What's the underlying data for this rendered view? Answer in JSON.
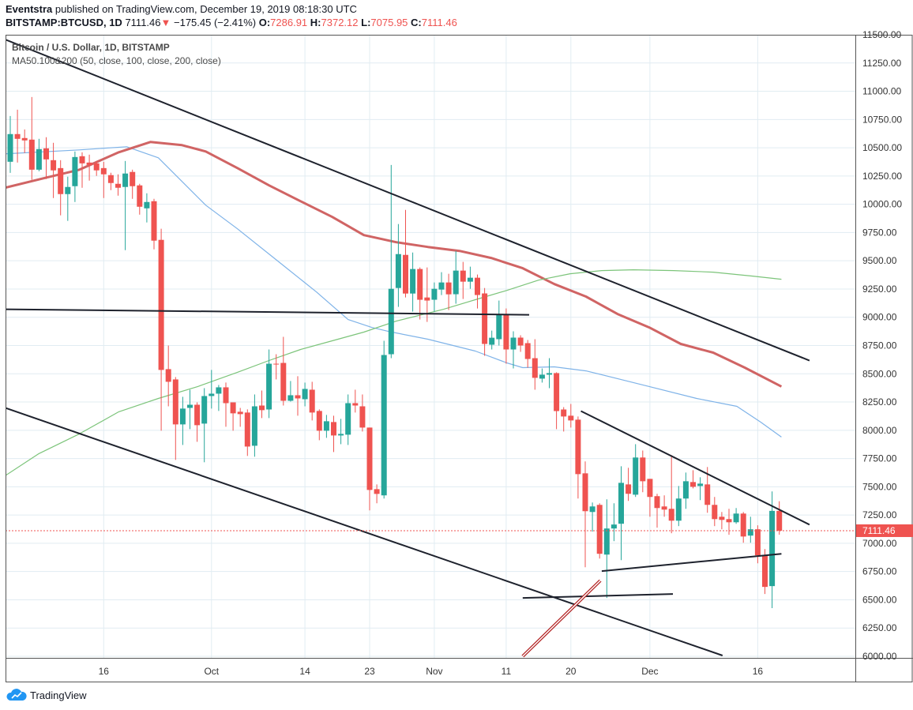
{
  "header": {
    "author": "Eventstra",
    "published_text": "published on TradingView.com, December 19, 2019 08:18:30 UTC",
    "symbol": "BITSTAMP:BTCUSD, 1D",
    "last": "7111.46",
    "change": "−175.45 (−2.41%)",
    "o_label": "O:",
    "o": "7286.91",
    "h_label": "H:",
    "h": "7372.12",
    "l_label": "L:",
    "l": "7075.95",
    "c_label": "C:",
    "c": "7111.46"
  },
  "legend": {
    "title": "Bitcoin / U.S. Dollar, 1D, BITSTAMP",
    "indicator": "MA50.100&200 (50, close, 100, close, 200, close)"
  },
  "footer": {
    "brand": "TradingView"
  },
  "colors": {
    "up": "#26a69a",
    "down": "#ef5350",
    "ma50": "#7fb3e8",
    "ma100": "#d06464",
    "ma200": "#7cc47a",
    "trend": "#1e222d",
    "grid": "#e1ecf2",
    "arrow": "#b22222"
  },
  "chart_data": {
    "type": "candlestick",
    "title": "Bitcoin / U.S. Dollar, 1D, BITSTAMP",
    "ylim": [
      6000,
      11500
    ],
    "y_ticks": [
      6000,
      6250,
      6500,
      6750,
      7000,
      7250,
      7500,
      7750,
      8000,
      8250,
      8500,
      8750,
      9000,
      9250,
      9500,
      9750,
      10000,
      10250,
      10500,
      10750,
      11000,
      11250,
      11500
    ],
    "x_ticks": [
      {
        "i": 13,
        "label": "16"
      },
      {
        "i": 28,
        "label": "Oct"
      },
      {
        "i": 41,
        "label": "14"
      },
      {
        "i": 50,
        "label": "23"
      },
      {
        "i": 59,
        "label": "Nov"
      },
      {
        "i": 69,
        "label": "11"
      },
      {
        "i": 78,
        "label": "20"
      },
      {
        "i": 89,
        "label": "Dec"
      },
      {
        "i": 104,
        "label": "16"
      }
    ],
    "last_price": 7111.46,
    "last_price_label": "7111.46",
    "candles_ohlc": [
      [
        10376,
        10781,
        10278,
        10621
      ],
      [
        10621,
        10837,
        10369,
        10579
      ],
      [
        10586,
        10662,
        10453,
        10565
      ],
      [
        10572,
        10949,
        10216,
        10306
      ],
      [
        10306,
        10579,
        10292,
        10488
      ],
      [
        10495,
        10593,
        10223,
        10397
      ],
      [
        10390,
        10544,
        10055,
        10300
      ],
      [
        10320,
        10390,
        9902,
        10090
      ],
      [
        10090,
        10244,
        9853,
        10153
      ],
      [
        10160,
        10467,
        10020,
        10418
      ],
      [
        10425,
        10460,
        10146,
        10362
      ],
      [
        10369,
        10439,
        10209,
        10348
      ],
      [
        10362,
        10383,
        10251,
        10300
      ],
      [
        10320,
        10376,
        10055,
        10265
      ],
      [
        10258,
        10279,
        10125,
        10188
      ],
      [
        10181,
        10265,
        10076,
        10146
      ],
      [
        10153,
        10383,
        9594,
        10272
      ],
      [
        10286,
        10306,
        10048,
        10160
      ],
      [
        10167,
        10181,
        9908,
        9978
      ],
      [
        9964,
        10097,
        9839,
        10020
      ],
      [
        10027,
        10048,
        9601,
        9678
      ],
      [
        9685,
        9783,
        7996,
        8534
      ],
      [
        8541,
        8750,
        8212,
        8429
      ],
      [
        8450,
        8471,
        7738,
        8052
      ],
      [
        8052,
        8296,
        7870,
        8192
      ],
      [
        8198,
        8359,
        8010,
        8226
      ],
      [
        8226,
        8247,
        7898,
        8045
      ],
      [
        8059,
        8373,
        7717,
        8303
      ],
      [
        8303,
        8534,
        8192,
        8324
      ],
      [
        8324,
        8401,
        8171,
        8380
      ],
      [
        8380,
        8422,
        8031,
        8240
      ],
      [
        8247,
        8247,
        7996,
        8150
      ],
      [
        8164,
        8198,
        8031,
        8143
      ],
      [
        8157,
        8185,
        7773,
        7856
      ],
      [
        7863,
        8317,
        7766,
        8212
      ],
      [
        8219,
        8352,
        8108,
        8178
      ],
      [
        8184,
        8715,
        8108,
        8589
      ],
      [
        8589,
        8673,
        8450,
        8582
      ],
      [
        8596,
        8827,
        8219,
        8261
      ],
      [
        8261,
        8436,
        8254,
        8310
      ],
      [
        8310,
        8478,
        8129,
        8282
      ],
      [
        8275,
        8422,
        8212,
        8366
      ],
      [
        8359,
        8429,
        8087,
        8157
      ],
      [
        8171,
        8185,
        7912,
        7996
      ],
      [
        7996,
        8136,
        7933,
        8080
      ],
      [
        8073,
        8129,
        7807,
        7954
      ],
      [
        7954,
        8101,
        7877,
        7968
      ],
      [
        7961,
        8317,
        7870,
        8240
      ],
      [
        8240,
        8359,
        8157,
        8219
      ],
      [
        8212,
        8317,
        7989,
        8024
      ],
      [
        8024,
        8024,
        7291,
        7472
      ],
      [
        7479,
        7521,
        7354,
        7437
      ],
      [
        7424,
        8792,
        7396,
        8666
      ],
      [
        8673,
        10348,
        8638,
        9252
      ],
      [
        9259,
        9825,
        9092,
        9559
      ],
      [
        9552,
        9950,
        9175,
        9210
      ],
      [
        9210,
        9573,
        9050,
        9427
      ],
      [
        9427,
        9441,
        8980,
        9155
      ],
      [
        9175,
        9441,
        8959,
        9148
      ],
      [
        9155,
        9308,
        9050,
        9252
      ],
      [
        9245,
        9399,
        9196,
        9308
      ],
      [
        9308,
        9385,
        9064,
        9203
      ],
      [
        9204,
        9587,
        9120,
        9413
      ],
      [
        9413,
        9490,
        9162,
        9315
      ],
      [
        9315,
        9448,
        9252,
        9350
      ],
      [
        9350,
        9378,
        9078,
        9197
      ],
      [
        9211,
        9259,
        8659,
        8764
      ],
      [
        8757,
        8882,
        8715,
        8819
      ],
      [
        8806,
        9148,
        8750,
        9022
      ],
      [
        9029,
        9078,
        8589,
        8715
      ],
      [
        8715,
        8876,
        8547,
        8820
      ],
      [
        8820,
        8841,
        8694,
        8750
      ],
      [
        8771,
        8799,
        8554,
        8631
      ],
      [
        8638,
        8806,
        8359,
        8464
      ],
      [
        8457,
        8547,
        8422,
        8492
      ],
      [
        8492,
        8638,
        8373,
        8506
      ],
      [
        8506,
        8513,
        8010,
        8170
      ],
      [
        8184,
        8205,
        7989,
        8122
      ],
      [
        8129,
        8233,
        8024,
        8087
      ],
      [
        8094,
        8122,
        7396,
        7612
      ],
      [
        7619,
        7724,
        6788,
        7284
      ],
      [
        7277,
        7361,
        7103,
        7326
      ],
      [
        7340,
        7354,
        6865,
        6907
      ],
      [
        6900,
        7389,
        6516,
        7131
      ],
      [
        7131,
        7354,
        7019,
        7166
      ],
      [
        7173,
        7682,
        6851,
        7535
      ],
      [
        7521,
        7668,
        7375,
        7438
      ],
      [
        7430,
        7877,
        7410,
        7759
      ],
      [
        7759,
        7821,
        7452,
        7549
      ],
      [
        7570,
        7570,
        7235,
        7410
      ],
      [
        7417,
        7438,
        7138,
        7312
      ],
      [
        7326,
        7424,
        7235,
        7298
      ],
      [
        7305,
        7780,
        7089,
        7200
      ],
      [
        7200,
        7507,
        7152,
        7396
      ],
      [
        7396,
        7626,
        7305,
        7549
      ],
      [
        7542,
        7647,
        7486,
        7500
      ],
      [
        7507,
        7584,
        7382,
        7528
      ],
      [
        7521,
        7675,
        7270,
        7340
      ],
      [
        7340,
        7410,
        7152,
        7214
      ],
      [
        7235,
        7277,
        7124,
        7207
      ],
      [
        7214,
        7305,
        7075,
        7186
      ],
      [
        7186,
        7312,
        7172,
        7263
      ],
      [
        7263,
        7277,
        7005,
        7060
      ],
      [
        7068,
        7235,
        7005,
        7124
      ],
      [
        7124,
        7159,
        6823,
        6893
      ],
      [
        6893,
        6949,
        6551,
        6614
      ],
      [
        6621,
        7459,
        6426,
        7286.91
      ],
      [
        7286.91,
        7372.12,
        7075.95,
        7111.46
      ]
    ],
    "moving_averages": [
      {
        "name": "MA50",
        "color_key": "ma50",
        "points": [
          [
            -0.7,
            10446
          ],
          [
            9.6,
            10481
          ],
          [
            16.2,
            10509
          ],
          [
            20.6,
            10411
          ],
          [
            27.2,
            9992
          ],
          [
            31.6,
            9783
          ],
          [
            37.1,
            9504
          ],
          [
            42.6,
            9224
          ],
          [
            47,
            8980
          ],
          [
            50.3,
            8910
          ],
          [
            52.6,
            8875
          ],
          [
            58.1,
            8806
          ],
          [
            64.7,
            8701
          ],
          [
            69.1,
            8596
          ],
          [
            71.3,
            8554
          ],
          [
            75.7,
            8561
          ],
          [
            80.1,
            8526
          ],
          [
            84.5,
            8457
          ],
          [
            88.9,
            8387
          ],
          [
            95.5,
            8282
          ],
          [
            101.1,
            8212
          ],
          [
            104.4,
            8073
          ],
          [
            107.3,
            7940
          ]
        ]
      },
      {
        "name": "MA100",
        "color_key": "ma100",
        "points": [
          [
            -0.7,
            10146
          ],
          [
            5.1,
            10237
          ],
          [
            9.6,
            10306
          ],
          [
            15.1,
            10460
          ],
          [
            19.5,
            10551
          ],
          [
            23.9,
            10523
          ],
          [
            27.2,
            10467
          ],
          [
            31.6,
            10320
          ],
          [
            36,
            10167
          ],
          [
            40.4,
            10027
          ],
          [
            44.8,
            9888
          ],
          [
            49.2,
            9727
          ],
          [
            53.7,
            9664
          ],
          [
            58.1,
            9622
          ],
          [
            62.5,
            9587
          ],
          [
            66.9,
            9525
          ],
          [
            71.3,
            9434
          ],
          [
            75.7,
            9294
          ],
          [
            80.1,
            9183
          ],
          [
            84.5,
            9029
          ],
          [
            88.9,
            8910
          ],
          [
            93.3,
            8764
          ],
          [
            97.8,
            8687
          ],
          [
            102.2,
            8554
          ],
          [
            107.3,
            8387
          ]
        ]
      },
      {
        "name": "MA200",
        "color_key": "ma200",
        "points": [
          [
            -0.7,
            7598
          ],
          [
            4,
            7794
          ],
          [
            9.6,
            7968
          ],
          [
            15.1,
            8164
          ],
          [
            20.6,
            8282
          ],
          [
            26.1,
            8387
          ],
          [
            31.6,
            8513
          ],
          [
            36,
            8617
          ],
          [
            40.4,
            8715
          ],
          [
            44.8,
            8792
          ],
          [
            49.2,
            8869
          ],
          [
            53.7,
            8966
          ],
          [
            60.3,
            9071
          ],
          [
            64.7,
            9155
          ],
          [
            69.1,
            9238
          ],
          [
            73.5,
            9329
          ],
          [
            77.9,
            9385
          ],
          [
            82.3,
            9413
          ],
          [
            86.7,
            9420
          ],
          [
            92.3,
            9413
          ],
          [
            97.8,
            9399
          ],
          [
            103.3,
            9364
          ],
          [
            107.3,
            9336
          ]
        ]
      }
    ],
    "trend_lines": [
      {
        "name": "upper-channel",
        "from": [
          -0.7,
          11458
        ],
        "to": [
          111.2,
          8617
        ]
      },
      {
        "name": "lower-channel",
        "from": [
          -0.7,
          8198
        ],
        "to": [
          99.1,
          6007
        ]
      },
      {
        "name": "horizontal-resistance",
        "from": [
          -0.7,
          9071
        ],
        "to": [
          72.2,
          9022
        ]
      },
      {
        "name": "wedge-top",
        "from": [
          79.4,
          8170
        ],
        "to": [
          111.2,
          7165
        ]
      },
      {
        "name": "wedge-bottom",
        "from": [
          82.3,
          6754
        ],
        "to": [
          107.3,
          6907
        ]
      },
      {
        "name": "support-line",
        "from": [
          71.3,
          6516
        ],
        "to": [
          92.2,
          6551
        ]
      },
      {
        "name": "red-arrow",
        "from": [
          71.3,
          6000
        ],
        "to": [
          82.1,
          6670
        ],
        "double": true
      }
    ]
  }
}
